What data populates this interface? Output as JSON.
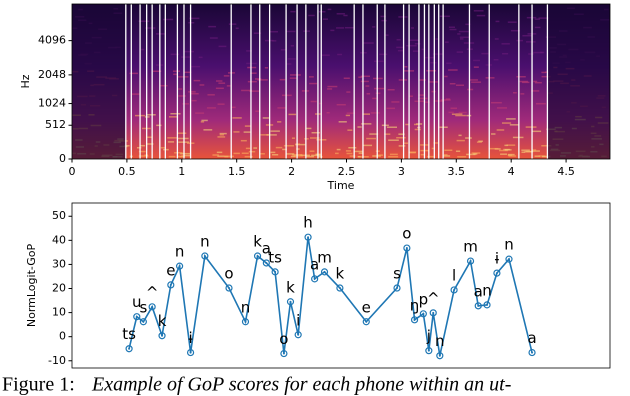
{
  "chart_data": [
    {
      "type": "spectrogram",
      "xlabel": "Time",
      "ylabel": "Hz",
      "xlim": [
        0,
        4.9
      ],
      "xticks": [
        0,
        0.5,
        1,
        1.5,
        2,
        2.5,
        3,
        3.5,
        4,
        4.5
      ],
      "ylim": [
        0,
        8000
      ],
      "yscale": "mel",
      "yticks": [
        0,
        512,
        1024,
        2048,
        4096
      ],
      "boundaries": [
        0.49,
        0.54,
        0.62,
        0.68,
        0.73,
        0.8,
        0.85,
        0.96,
        1.02,
        1.08,
        1.45,
        1.63,
        1.71,
        1.8,
        1.95,
        2.05,
        2.13,
        2.24,
        2.27,
        2.57,
        2.65,
        2.78,
        2.85,
        3.02,
        3.07,
        3.16,
        3.21,
        3.25,
        3.3,
        3.34,
        3.38,
        3.62,
        3.8,
        4.07,
        4.19,
        4.33
      ]
    },
    {
      "type": "line",
      "ylabel": "NormLogit-GoP",
      "xlim": [
        0,
        4.9
      ],
      "ylim": [
        -13,
        55.5
      ],
      "yticks": [
        -10,
        0,
        10,
        20,
        30,
        40,
        50
      ],
      "color": "#1f77b4",
      "x": [
        0.52,
        0.59,
        0.65,
        0.73,
        0.82,
        0.9,
        0.98,
        1.08,
        1.21,
        1.43,
        1.58,
        1.69,
        1.77,
        1.85,
        1.93,
        1.99,
        2.06,
        2.15,
        2.21,
        2.3,
        2.44,
        2.68,
        2.96,
        3.05,
        3.12,
        3.2,
        3.25,
        3.29,
        3.35,
        3.48,
        3.63,
        3.7,
        3.78,
        3.87,
        3.98,
        4.19
      ],
      "values": [
        -5,
        8.3,
        6.2,
        12.4,
        0.4,
        21.5,
        29.3,
        -6.6,
        33.5,
        20.2,
        6.2,
        33.5,
        30.6,
        26.9,
        -7,
        14.5,
        0.8,
        41.3,
        24,
        26.9,
        20.2,
        6.2,
        20.2,
        36.8,
        7,
        9.5,
        -5.8,
        9.9,
        -7.9,
        19.4,
        31.4,
        12.8,
        13.2,
        26.4,
        32.2,
        -6.6
      ],
      "labels": [
        "ts",
        "u",
        "s",
        "^",
        "k",
        "e",
        "n",
        "ɨ",
        "n",
        "o",
        "n",
        "k",
        "a",
        "ts",
        "o",
        "k",
        "i",
        "h",
        "a",
        "m",
        "k",
        "e",
        "s",
        "o",
        "ŋ",
        "p",
        "j",
        "^",
        "n",
        "l",
        "m",
        "a",
        "n",
        "ɨ",
        "n",
        "a"
      ]
    }
  ],
  "caption": {
    "label": "Figure 1:",
    "text": "Example of GoP scores for each phone within an ut-"
  }
}
